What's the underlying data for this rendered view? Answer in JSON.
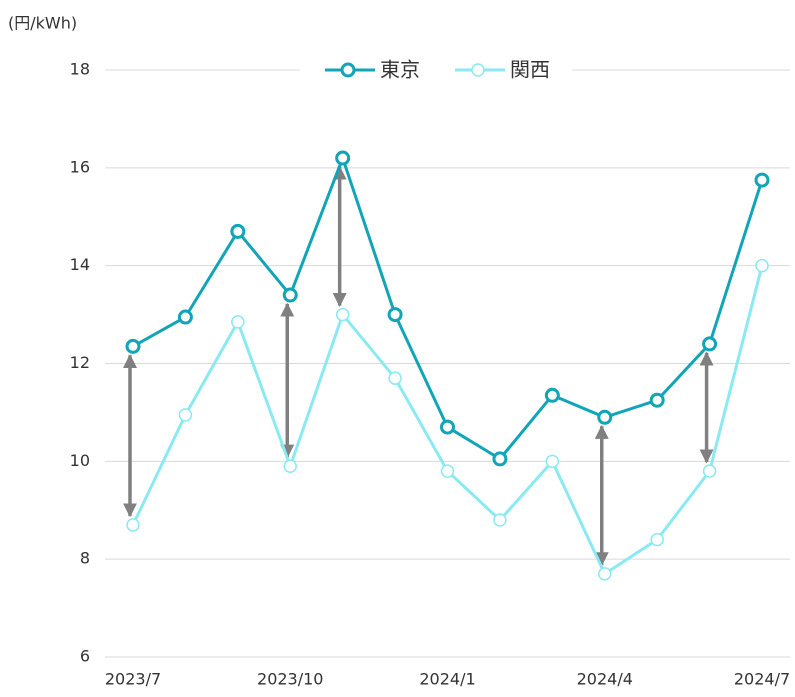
{
  "chart_data": {
    "type": "line",
    "y_label": "(円/kWh)",
    "categories": [
      "2023/7",
      null,
      null,
      "2023/10",
      null,
      null,
      "2024/1",
      null,
      null,
      "2024/4",
      null,
      null,
      "2024/7"
    ],
    "series": [
      {
        "name": "東京",
        "color": "#12a4b8",
        "marker_fill": "#ffffff",
        "values": [
          12.35,
          12.95,
          14.7,
          13.4,
          16.2,
          13.0,
          10.7,
          10.05,
          11.35,
          10.9,
          11.25,
          12.4,
          15.75
        ]
      },
      {
        "name": "関西",
        "color": "#8ae9f3",
        "marker_fill": "#ffffff",
        "values": [
          8.7,
          10.95,
          12.85,
          9.9,
          13.0,
          11.7,
          9.8,
          8.8,
          10.0,
          7.7,
          8.4,
          9.8,
          14.0
        ]
      }
    ],
    "ylim": [
      6,
      18
    ],
    "yticks": [
      6,
      8,
      10,
      12,
      14,
      16,
      18
    ],
    "grid": true,
    "legend": "top",
    "difference_arrows": {
      "indices": [
        0,
        3,
        4,
        9,
        11
      ],
      "color": "#808080"
    }
  }
}
